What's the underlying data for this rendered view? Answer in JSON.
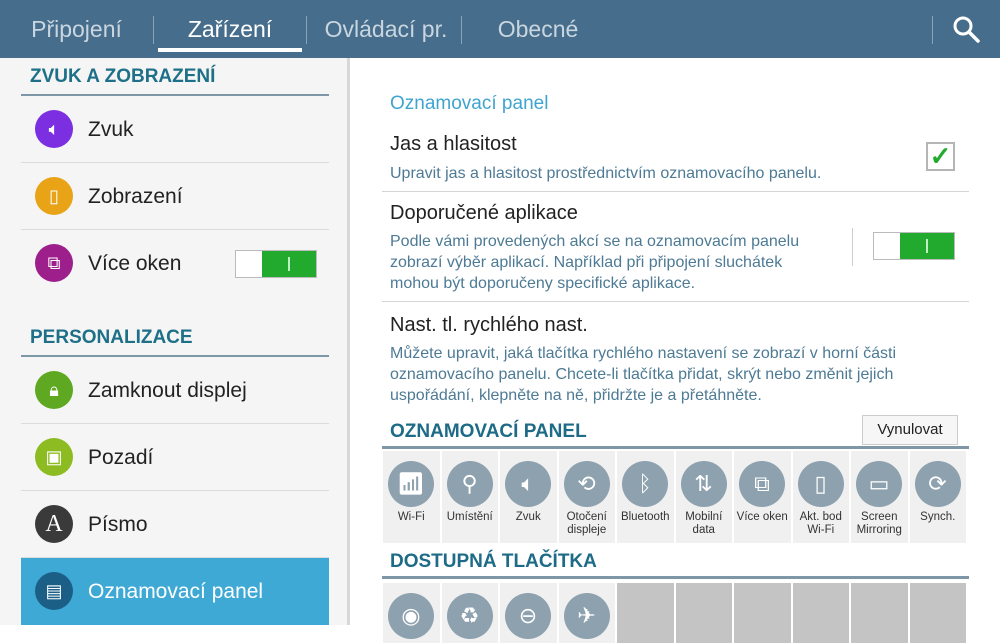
{
  "tabs": [
    {
      "label": "Připojení"
    },
    {
      "label": "Zařízení",
      "active": true
    },
    {
      "label": "Ovládací pr."
    },
    {
      "label": "Obecné"
    }
  ],
  "search_icon": "search-icon",
  "sidebar": {
    "sections": [
      {
        "title": "ZVUK A ZOBRAZENÍ",
        "items": [
          {
            "label": "Zvuk",
            "icon": "speaker-icon",
            "color": "#7b2fe0"
          },
          {
            "label": "Zobrazení",
            "icon": "display-icon",
            "color": "#e8a317"
          },
          {
            "label": "Více oken",
            "icon": "multi-window-icon",
            "color": "#9c1f8c",
            "toggle": true
          }
        ]
      },
      {
        "title": "PERSONALIZACE",
        "items": [
          {
            "label": "Zamknout displej",
            "icon": "lock-screen-icon",
            "color": "#5ea822"
          },
          {
            "label": "Pozadí",
            "icon": "wallpaper-icon",
            "color": "#8dbb22"
          },
          {
            "label": "Písmo",
            "icon": "font-icon",
            "color": "#3a3a3a"
          },
          {
            "label": "Oznamovací panel",
            "icon": "notification-panel-icon",
            "color": "#1b5f86",
            "selected": true
          }
        ]
      }
    ]
  },
  "main": {
    "title": "Oznamovací panel",
    "items": [
      {
        "title": "Jas a hlasitost",
        "desc": "Upravit jas a hlasitost prostřednictvím oznamovacího panelu.",
        "checked": true
      },
      {
        "title": "Doporučené aplikace",
        "desc": "Podle vámi provedených akcí se na oznamovacím panelu zobrazí výběr aplikací. Například při připojení sluchátek mohou být doporučeny specifické aplikace.",
        "toggle": true
      },
      {
        "title": "Nast. tl. rychlého nast.",
        "desc": "Můžete upravit, jaká tlačítka rychlého nastavení se zobrazí v horní části oznamovacího panelu. Chcete-li tlačítka přidat, skrýt nebo změnit jejich uspořádání, klepněte na ně, přidržte je a přetáhněte."
      }
    ],
    "panel_section": "OZNAMOVACÍ PANEL",
    "reset_label": "Vynulovat",
    "panel_buttons": [
      {
        "label": "Wi-Fi",
        "icon": "wifi-icon"
      },
      {
        "label": "Umístění",
        "icon": "location-icon"
      },
      {
        "label": "Zvuk",
        "icon": "speaker-icon"
      },
      {
        "label": "Otočení displeje",
        "icon": "rotate-screen-icon"
      },
      {
        "label": "Bluetooth",
        "icon": "bluetooth-icon"
      },
      {
        "label": "Mobilní data",
        "icon": "mobile-data-icon"
      },
      {
        "label": "Více oken",
        "icon": "multi-window-icon"
      },
      {
        "label": "Akt. bod Wi-Fi",
        "icon": "hotspot-icon"
      },
      {
        "label": "Screen Mirroring",
        "icon": "screen-mirroring-icon"
      },
      {
        "label": "Synch.",
        "icon": "sync-icon"
      }
    ],
    "available_section": "DOSTUPNÁ TLAČÍTKA",
    "available_buttons": [
      {
        "icon": "smart-stay-icon"
      },
      {
        "icon": "power-saving-icon"
      },
      {
        "icon": "blocking-mode-icon"
      },
      {
        "icon": "airplane-icon"
      }
    ]
  }
}
